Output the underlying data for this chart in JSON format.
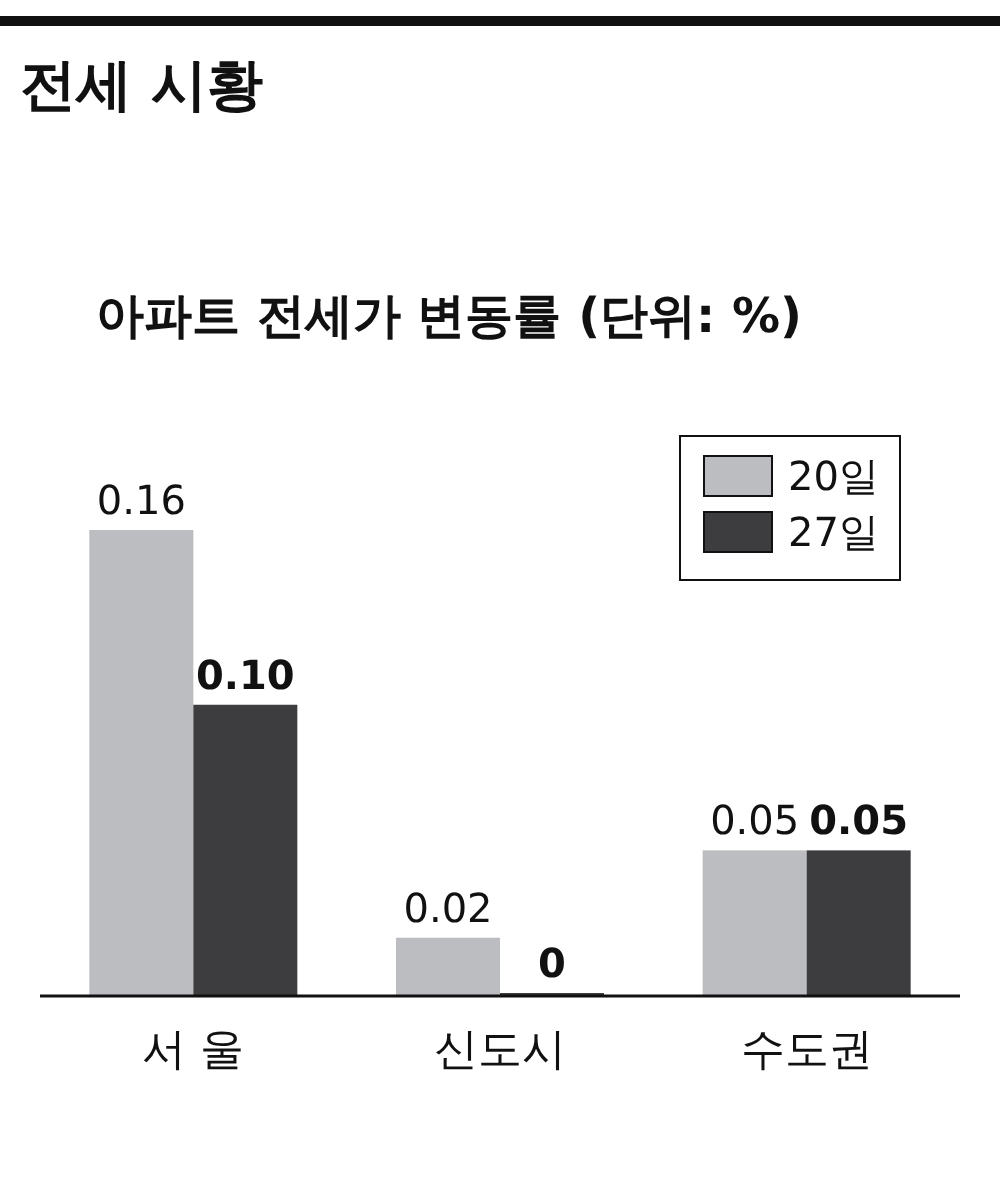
{
  "chart_data": {
    "type": "bar",
    "title": "전세 시황",
    "subtitle": "아파트 전세가 변동률 (단위: %)",
    "categories": [
      "서 울",
      "신도시",
      "수도권"
    ],
    "series": [
      {
        "name": "20일",
        "color": "#bcbdc0",
        "values": [
          0.16,
          0.02,
          0.05
        ],
        "value_labels": [
          "0.16",
          "0.02",
          "0.05"
        ]
      },
      {
        "name": "27일",
        "color": "#3d3d3f",
        "values": [
          0.1,
          0,
          0.05
        ],
        "value_labels": [
          "0.10",
          "0",
          "0.05"
        ]
      }
    ],
    "legend": "top right",
    "grid": false
  }
}
